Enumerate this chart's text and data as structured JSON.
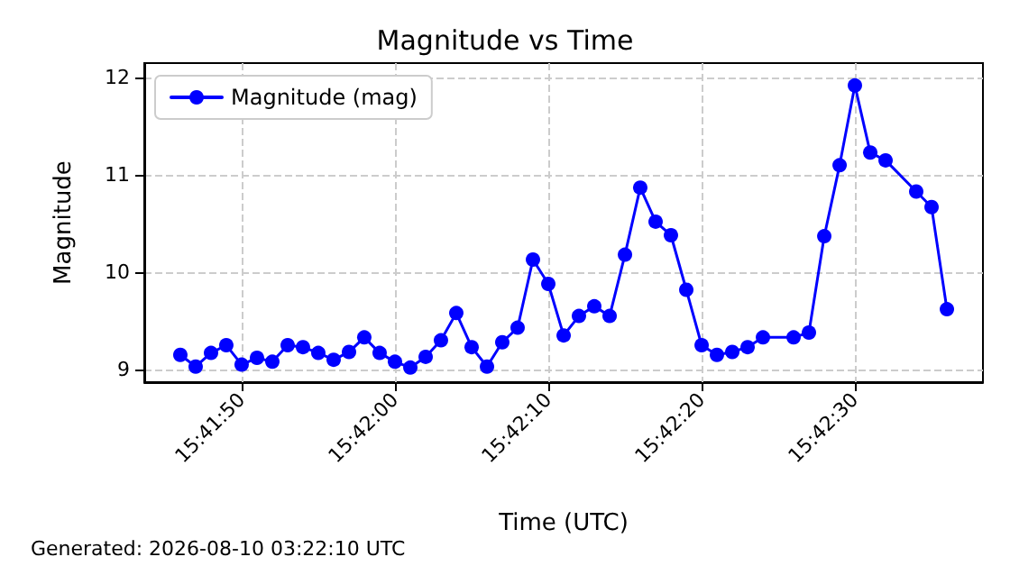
{
  "chart_data": {
    "type": "line",
    "title": "Magnitude vs Time",
    "xlabel": "Time (UTC)",
    "ylabel": "Magnitude",
    "annotations": [
      "Generated: 2026-08-10 03:22:10 UTC"
    ],
    "series": [
      {
        "name": "Magnitude (mag)",
        "color": "#0000ff",
        "x": [
          15.696111,
          15.696389,
          15.696667,
          15.696944,
          15.697222,
          15.6975,
          15.697778,
          15.698056,
          15.698333,
          15.698611,
          15.698889,
          15.699167,
          15.699444,
          15.699722,
          15.7,
          15.700278,
          15.700556,
          15.700833,
          15.701111,
          15.701389,
          15.701667,
          15.701944,
          15.702222,
          15.7025,
          15.702778,
          15.703056,
          15.703333,
          15.703611,
          15.703889,
          15.704167,
          15.704444,
          15.704722,
          15.705,
          15.705278,
          15.705556,
          15.705833,
          15.706111,
          15.706389,
          15.706667,
          15.707222,
          15.7075,
          15.707778,
          15.708056,
          15.708333,
          15.708611,
          15.708889,
          15.709444,
          15.709722,
          15.71
        ],
        "values": [
          9.15,
          9.03,
          9.17,
          9.25,
          9.05,
          9.12,
          9.08,
          9.25,
          9.23,
          9.17,
          9.1,
          9.18,
          9.33,
          9.17,
          9.08,
          9.02,
          9.13,
          9.3,
          9.58,
          9.23,
          9.03,
          9.28,
          9.43,
          10.13,
          9.88,
          9.35,
          9.55,
          9.65,
          9.55,
          10.18,
          10.87,
          10.52,
          10.38,
          9.82,
          9.25,
          9.15,
          9.18,
          9.23,
          9.33,
          9.33,
          9.38,
          10.37,
          11.1,
          11.92,
          11.23,
          11.15,
          10.83,
          10.67,
          9.62
        ]
      }
    ],
    "xlim": [
      15.695458,
      15.710653
    ],
    "xticks": [
      {
        "value": 15.697222,
        "label": "15:41:50"
      },
      {
        "value": 15.7,
        "label": "15:42:00"
      },
      {
        "value": 15.702778,
        "label": "15:42:10"
      },
      {
        "value": 15.705556,
        "label": "15:42:20"
      },
      {
        "value": 15.708333,
        "label": "15:42:30"
      }
    ],
    "ylim": [
      8.87,
      12.15
    ],
    "yticks": [
      9,
      10,
      11,
      12
    ],
    "grid": true,
    "legend": "top left",
    "marker": "circle",
    "line_style": "solid"
  }
}
